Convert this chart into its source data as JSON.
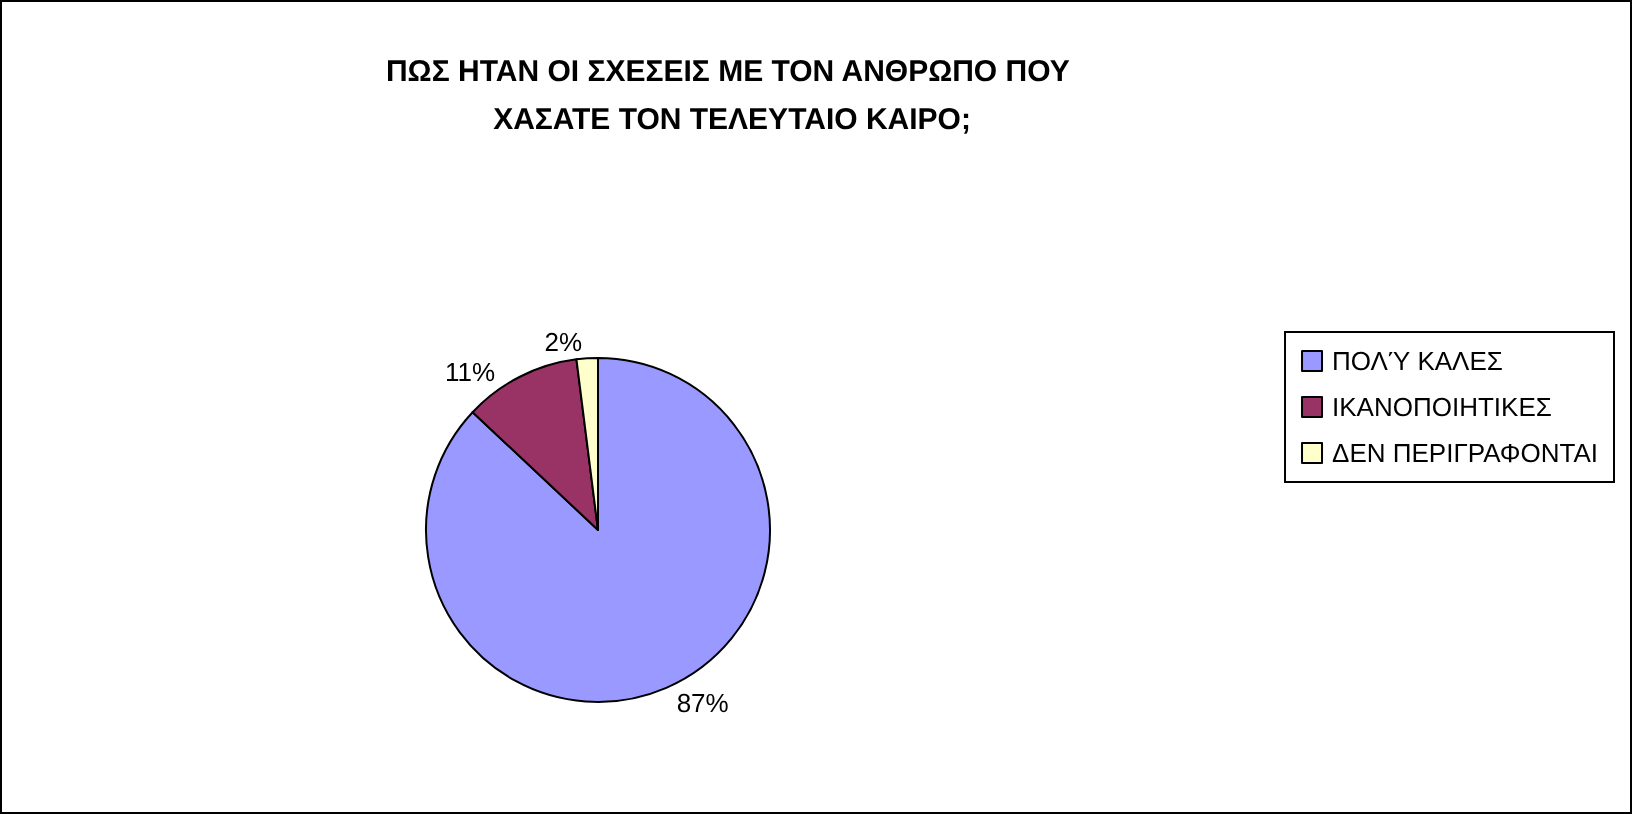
{
  "chart_data": {
    "type": "pie",
    "title": "ΠΩΣ ΗΤΑΝ ΟΙ ΣΧΕΣΕΙΣ ΜΕ ΤΟΝ ΑΝΘΡΩΠΟ ΠΟΥ ΧΑΣΑΤΕ ΤΟΝ ΤΕΛΕΥΤΑΙΟ ΚΑΙΡΟ;",
    "categories": [
      "ΠΟΛΎ ΚΑΛΕΣ",
      "ΙΚΑΝΟΠΟΙΗΤΙΚΕΣ",
      "ΔΕΝ ΠΕΡΙΓΡΑΦΟΝΤΑΙ"
    ],
    "values": [
      87,
      11,
      2
    ],
    "colors": [
      "#9999ff",
      "#993366",
      "#ffffcc"
    ],
    "value_labels": [
      "87%",
      "11%",
      "2%"
    ],
    "legend": "right"
  }
}
